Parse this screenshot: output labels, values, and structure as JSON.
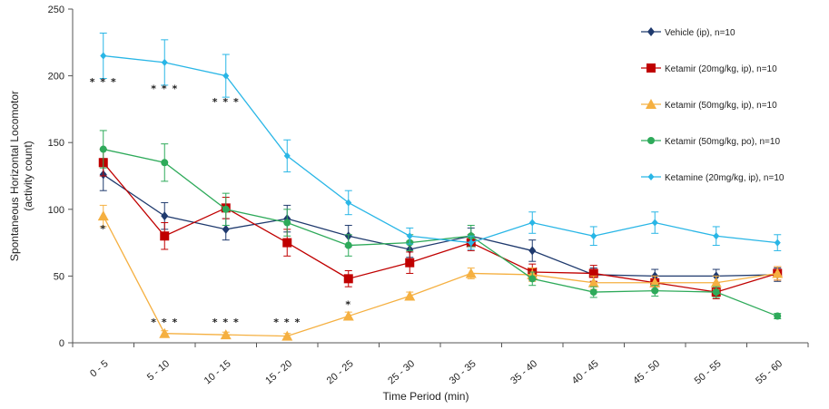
{
  "chart_data": {
    "type": "line",
    "title": "",
    "xlabel": "Time Period (min)",
    "ylabel_line1": "Spontaneous Horizontal Locomotor",
    "ylabel_line2": "(activity count)",
    "ylim": [
      0,
      250
    ],
    "yticks": [
      "0",
      "50",
      "100",
      "150",
      "200",
      "250"
    ],
    "ytick_values": [
      0,
      50,
      100,
      150,
      200,
      250
    ],
    "categories": [
      "0 - 5",
      "5 - 10",
      "10 - 15",
      "15 - 20",
      "20 - 25",
      "25 - 30",
      "30 - 35",
      "35 - 40",
      "40 - 45",
      "45 - 50",
      "50 - 55",
      "55 - 60"
    ],
    "legend_position": "top-right",
    "series": [
      {
        "name": "Vehicle (ip), n=10",
        "color": "#1f3a6e",
        "marker": "diamond",
        "values": [
          126,
          95,
          85,
          93,
          80,
          70,
          80,
          69,
          51,
          50,
          50,
          51
        ],
        "errors": [
          12,
          10,
          8,
          10,
          8,
          6,
          6,
          8,
          5,
          5,
          5,
          5
        ]
      },
      {
        "name": "Ketamir (20mg/kg, ip), n=10",
        "color": "#c00000",
        "marker": "square",
        "values": [
          135,
          80,
          101,
          75,
          48,
          60,
          75,
          53,
          52,
          45,
          38,
          52
        ],
        "errors": [
          10,
          10,
          8,
          10,
          6,
          8,
          6,
          6,
          6,
          5,
          5,
          5
        ]
      },
      {
        "name": "Ketamir (50mg/kg, ip), n=10",
        "color": "#f5b041",
        "marker": "triangle",
        "values": [
          95,
          7,
          6,
          5,
          20,
          35,
          52,
          51,
          45,
          45,
          45,
          52
        ],
        "errors": [
          8,
          2,
          2,
          2,
          3,
          3,
          4,
          5,
          5,
          5,
          5,
          5
        ]
      },
      {
        "name": "Ketamir (50mg/kg, po), n=10",
        "color": "#2eaa5a",
        "marker": "circle",
        "values": [
          145,
          135,
          100,
          90,
          73,
          75,
          80,
          48,
          38,
          39,
          38,
          20
        ],
        "errors": [
          14,
          14,
          12,
          10,
          8,
          6,
          8,
          5,
          4,
          4,
          4,
          2
        ]
      },
      {
        "name": "Ketamine (20mg/kg, ip), n=10",
        "color": "#29b6e6",
        "marker": "diamond-small",
        "values": [
          215,
          210,
          200,
          140,
          105,
          80,
          75,
          90,
          80,
          90,
          80,
          75
        ],
        "errors": [
          17,
          17,
          16,
          12,
          9,
          6,
          5,
          8,
          7,
          8,
          7,
          6
        ]
      }
    ],
    "annotations": [
      {
        "text": "* * *",
        "category": "0 - 5",
        "y": 193
      },
      {
        "text": "* * *",
        "category": "5 - 10",
        "y": 188
      },
      {
        "text": "* * *",
        "category": "10 - 15",
        "y": 178
      },
      {
        "text": "*",
        "category": "0 - 5",
        "y": 83
      },
      {
        "text": "* * *",
        "category": "5 - 10",
        "y": 13
      },
      {
        "text": "* * *",
        "category": "10 - 15",
        "y": 13
      },
      {
        "text": "* * *",
        "category": "15 - 20",
        "y": 13
      },
      {
        "text": "*",
        "category": "20 - 25",
        "y": 26
      }
    ]
  }
}
